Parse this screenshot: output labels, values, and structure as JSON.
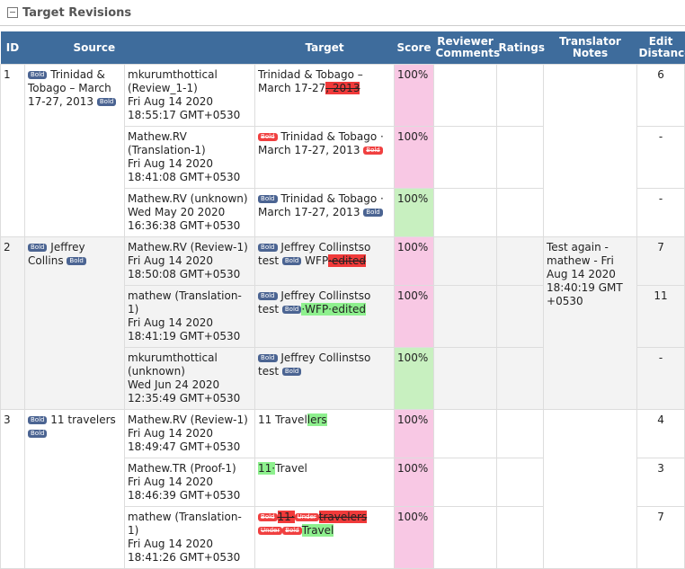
{
  "header": {
    "title": "Target Revisions"
  },
  "columns": [
    "ID",
    "Source",
    "Target",
    "Score",
    "Reviewer Comments",
    "Ratings",
    "Translator Notes",
    "Edit Distance"
  ],
  "groups": [
    {
      "id": "1",
      "source": [
        {
          "tag": "Bold"
        },
        {
          "text": " Trinidad & Tobago – March 17-27, 2013 "
        },
        {
          "tag": "Bold"
        }
      ],
      "notes": null,
      "revisions": [
        {
          "author": "mkurumthottical",
          "role": "(Review_1-1)",
          "date": "Fri Aug 14 2020 18:55:17 GMT+0530",
          "target": [
            {
              "text": "Trinidad & Tobago – March 17-27"
            },
            {
              "del": ", 2013"
            }
          ],
          "score": "100%",
          "score_color": "#f8c8e4",
          "edit_distance": "6"
        },
        {
          "author": "Mathew.RV",
          "role": "(Translation-1)",
          "date": "Fri Aug 14 2020 18:41:08 GMT+0530",
          "target": [
            {
              "deltag": "Bold"
            },
            {
              "text": " Trinidad & Tobago · March 17-27, 2013 "
            },
            {
              "deltag": "Bold"
            }
          ],
          "score": "100%",
          "score_color": "#f8c8e4",
          "edit_distance": "-"
        },
        {
          "author": "Mathew.RV",
          "role": "(unknown)",
          "date": "Wed May 20 2020 16:36:38 GMT+0530",
          "target": [
            {
              "tag": "Bold"
            },
            {
              "text": " Trinidad & Tobago · March 17-27, 2013 "
            },
            {
              "tag": "Bold"
            }
          ],
          "score": "100%",
          "score_color": "#c8f0c0",
          "edit_distance": "-"
        }
      ]
    },
    {
      "id": "2",
      "source": [
        {
          "tag": "Bold"
        },
        {
          "text": " Jeffrey Collins "
        },
        {
          "tag": "Bold"
        }
      ],
      "notes": "Test again - mathew - Fri Aug 14 2020 18:40:19 GMT +0530",
      "revisions": [
        {
          "author": "Mathew.RV",
          "role": "(Review-1)",
          "date": "Fri Aug 14 2020 18:50:08 GMT+0530",
          "target": [
            {
              "tag": "Bold"
            },
            {
              "text": " Jeffrey Collinstso test "
            },
            {
              "tag": "Bold"
            },
            {
              "text": " WFP"
            },
            {
              "del": "·edited"
            }
          ],
          "score": "100%",
          "score_color": "#f8c8e4",
          "edit_distance": "7"
        },
        {
          "author": "mathew",
          "role": "(Translation-1)",
          "date": "Fri Aug 14 2020 18:41:19 GMT+0530",
          "target": [
            {
              "tag": "Bold"
            },
            {
              "text": " Jeffrey Collinstso test "
            },
            {
              "tag": "Bold"
            },
            {
              "ins": "·WFP·edited"
            }
          ],
          "score": "100%",
          "score_color": "#f8c8e4",
          "edit_distance": "11"
        },
        {
          "author": "mkurumthottical",
          "role": "(unknown)",
          "date": "Wed Jun 24 2020 12:35:49 GMT+0530",
          "target": [
            {
              "tag": "Bold"
            },
            {
              "text": " Jeffrey Collinstso test "
            },
            {
              "tag": "Bold"
            }
          ],
          "score": "100%",
          "score_color": "#c8f0c0",
          "edit_distance": "-"
        }
      ]
    },
    {
      "id": "3",
      "source": [
        {
          "tag": "Bold"
        },
        {
          "text": " 11 travelers "
        },
        {
          "tag": "Bold"
        }
      ],
      "notes": null,
      "revisions": [
        {
          "author": "Mathew.RV",
          "role": "(Review-1)",
          "date": "Fri Aug 14 2020 18:49:47 GMT+0530",
          "target": [
            {
              "text": "11 Travel"
            },
            {
              "ins": "lers"
            }
          ],
          "score": "100%",
          "score_color": "#f8c8e4",
          "edit_distance": "4"
        },
        {
          "author": "Mathew.TR",
          "role": "(Proof-1)",
          "date": "Fri Aug 14 2020 18:46:39 GMT+0530",
          "target": [
            {
              "ins": "11·"
            },
            {
              "text": "Travel"
            }
          ],
          "score": "100%",
          "score_color": "#f8c8e4",
          "edit_distance": "3"
        },
        {
          "author": "mathew",
          "role": "(Translation-1)",
          "date": "Fri Aug 14 2020 18:41:26 GMT+0530",
          "target": [
            {
              "deltag": "Bold"
            },
            {
              "del": "11·"
            },
            {
              "deltag": "Under"
            },
            {
              "del": "travelers"
            },
            {
              "deltag": "Under"
            },
            {
              "deltag": "Bold"
            },
            {
              "ins": "Travel"
            }
          ],
          "score": "100%",
          "score_color": "#f8c8e4",
          "edit_distance": "7"
        }
      ]
    }
  ]
}
